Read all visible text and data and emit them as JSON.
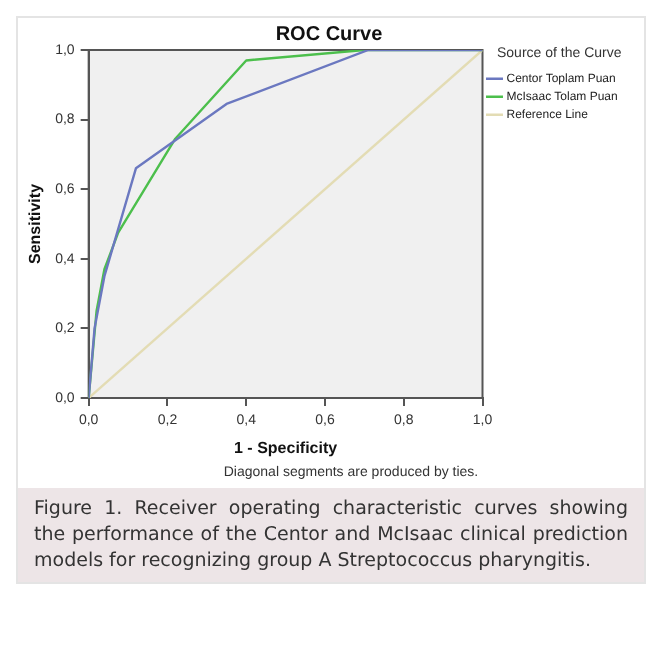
{
  "chart_data": {
    "type": "line",
    "title": "ROC Curve",
    "xlabel": "1 - Specificity",
    "ylabel": "Sensitivity",
    "legend_title": "Source of the Curve",
    "series": [
      {
        "name": "Centor Toplam Puan",
        "color": "#6b78c0",
        "x": [
          0,
          0.015,
          0.04,
          0.12,
          0.35,
          0.71,
          1
        ],
        "values": [
          0,
          0.2,
          0.35,
          0.66,
          0.845,
          1,
          1
        ]
      },
      {
        "name": "McIsaac Tolam Puan",
        "color": "#4cbf4c",
        "x": [
          0,
          0.02,
          0.04,
          0.075,
          0.22,
          0.4,
          0.7,
          1
        ],
        "values": [
          0,
          0.25,
          0.37,
          0.475,
          0.745,
          0.97,
          1,
          1
        ]
      },
      {
        "name": "Reference Line",
        "color": "#e3dcb4",
        "x": [
          0,
          1
        ],
        "values": [
          0,
          1
        ]
      }
    ],
    "xlim": [
      0,
      1
    ],
    "ylim": [
      0,
      1
    ],
    "xticks": [
      {
        "value": 0,
        "label": "0,0"
      },
      {
        "value": 0.2,
        "label": "0,2"
      },
      {
        "value": 0.4,
        "label": "0,4"
      },
      {
        "value": 0.6,
        "label": "0,6"
      },
      {
        "value": 0.8,
        "label": "0,8"
      },
      {
        "value": 1,
        "label": "1,0"
      }
    ],
    "yticks": [
      {
        "value": 0,
        "label": "0,0"
      },
      {
        "value": 0.2,
        "label": "0,2"
      },
      {
        "value": 0.4,
        "label": "0,4"
      },
      {
        "value": 0.6,
        "label": "0,6"
      },
      {
        "value": 0.8,
        "label": "0,8"
      },
      {
        "value": 1,
        "label": "1,0"
      }
    ],
    "grid": false,
    "legend": "top right",
    "marker": "none",
    "line_style": "solid",
    "annotations": [
      "Diagonal segments are produced by ties.",
      "Figure 1. Receiver operating characteristic curves showing the performance of the Centor and McIsaac clinical prediction models for recognizing group A Streptococcus pharyngitis."
    ]
  }
}
